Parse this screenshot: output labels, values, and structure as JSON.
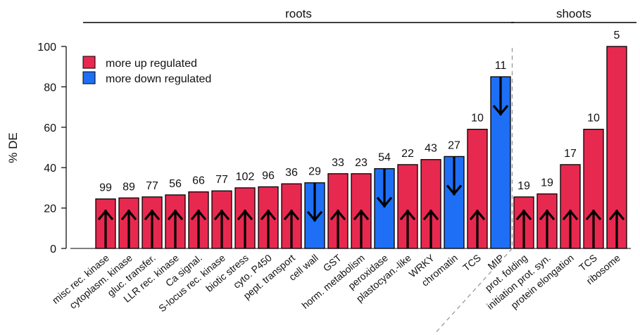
{
  "chart_data": {
    "type": "bar",
    "ylabel": "% DE",
    "ylim": [
      0,
      100
    ],
    "yticks": [
      0,
      20,
      40,
      60,
      80,
      100
    ],
    "grid": false,
    "legend": {
      "placement": "top-left",
      "entries": [
        {
          "label": "more up regulated",
          "color": "#e8294f"
        },
        {
          "label": "more down regulated",
          "color": "#1e6ff5"
        }
      ]
    },
    "groups": [
      {
        "label": "roots",
        "start": 0,
        "end": 17
      },
      {
        "label": "shoots",
        "start": 18,
        "end": 22
      }
    ],
    "categories": [
      "misc rec. kinase",
      "cytoplasm. kinase",
      "gluc. transfer.",
      "LLR rec. kinase",
      "Ca signal.",
      "S-locus rec. kinase",
      "biotic stress",
      "cyto. P450",
      "pept. transport",
      "cell wall",
      "GST",
      "horm. metabolism",
      "peroxidase",
      "plastocyan.-like",
      "WRKY",
      "chromatin",
      "TCS",
      "MIP",
      "prot. folding",
      "initiation prot. syn.",
      "protein elongation",
      "TCS",
      "ribosome"
    ],
    "values": [
      24.5,
      25,
      25.5,
      26.5,
      28,
      28.5,
      30,
      30.5,
      32,
      32.5,
      37,
      37,
      39.5,
      41.5,
      44,
      45.5,
      59,
      85,
      25.5,
      27,
      41.5,
      59,
      100
    ],
    "counts": [
      "99",
      "89",
      "77",
      "56",
      "66",
      "77",
      "102",
      "96",
      "36",
      "29",
      "33",
      "23",
      "54",
      "22",
      "43",
      "27",
      "10",
      "11",
      "19",
      "19",
      "17",
      "10",
      "5"
    ],
    "directions": [
      "up",
      "up",
      "up",
      "up",
      "up",
      "up",
      "up",
      "up",
      "up",
      "down",
      "up",
      "up",
      "down",
      "up",
      "up",
      "down",
      "up",
      "down",
      "up",
      "up",
      "up",
      "up",
      "up"
    ],
    "colors": {
      "up": "#e8294f",
      "down": "#1e6ff5"
    }
  }
}
